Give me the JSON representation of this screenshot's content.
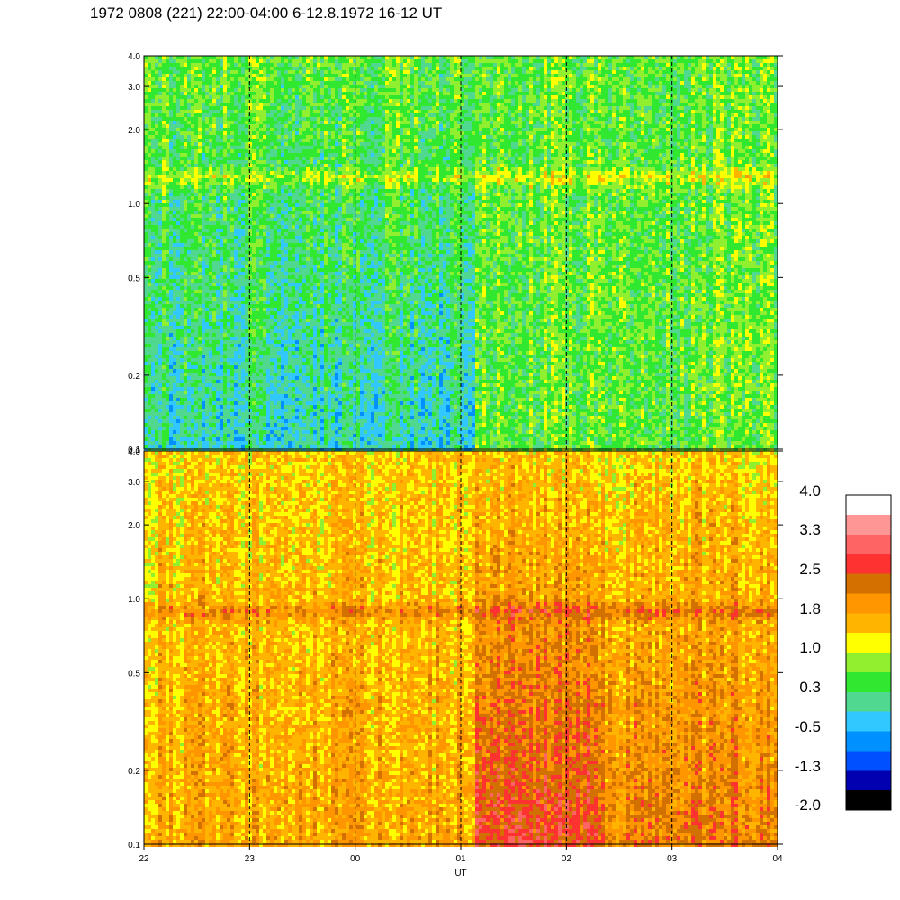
{
  "title": "1972 0808 (221) 22:00-04:00 6-12.8.1972  16-12 UT",
  "chart_data": [
    {
      "type": "heatmap",
      "panel": "top",
      "y_scale": "log",
      "ylim": [
        0.1,
        4.0
      ],
      "yticks": [
        0.1,
        0.2,
        0.5,
        1.0,
        2.0,
        3.0,
        4.0
      ],
      "ytick_labels": [
        "0.1",
        "0.2",
        "0.5",
        "1.0",
        "2.0",
        "3.0",
        "4.0"
      ],
      "xlim_hours": [
        22,
        28
      ],
      "dominant_colors": "cyan/green at low frequencies, yellow band near 1.3, green above",
      "band_center": 1.3
    },
    {
      "type": "heatmap",
      "panel": "bottom",
      "y_scale": "log",
      "ylim": [
        0.1,
        4.0
      ],
      "yticks": [
        0.1,
        0.2,
        0.5,
        1.0,
        2.0,
        3.0,
        4.0
      ],
      "ytick_labels": [
        "0.1",
        "0.2",
        "0.5",
        "1.0",
        "2.0",
        "3.0",
        "4.0"
      ],
      "xlim_hours": [
        22,
        28
      ],
      "dominant_colors": "orange/yellow, red intensification after 01 UT",
      "band_center": 0.9
    }
  ],
  "x_axis": {
    "label": "UT",
    "ticks": [
      "22",
      "23",
      "00",
      "01",
      "02",
      "03",
      "04"
    ],
    "dashed_hours": [
      23,
      24,
      25,
      26,
      27
    ]
  },
  "colorbar": {
    "colors": [
      "#000000",
      "#0000b0",
      "#0050ff",
      "#0090ff",
      "#30c8ff",
      "#50d890",
      "#30e830",
      "#90f030",
      "#ffff00",
      "#ffb400",
      "#ff9600",
      "#d27000",
      "#ff3232",
      "#ff6464",
      "#ff9696",
      "#ffffff"
    ],
    "labels": [
      "4.0",
      "3.3",
      "2.5",
      "1.8",
      "1.0",
      "0.3",
      "-0.5",
      "-1.3",
      "-2.0"
    ]
  }
}
